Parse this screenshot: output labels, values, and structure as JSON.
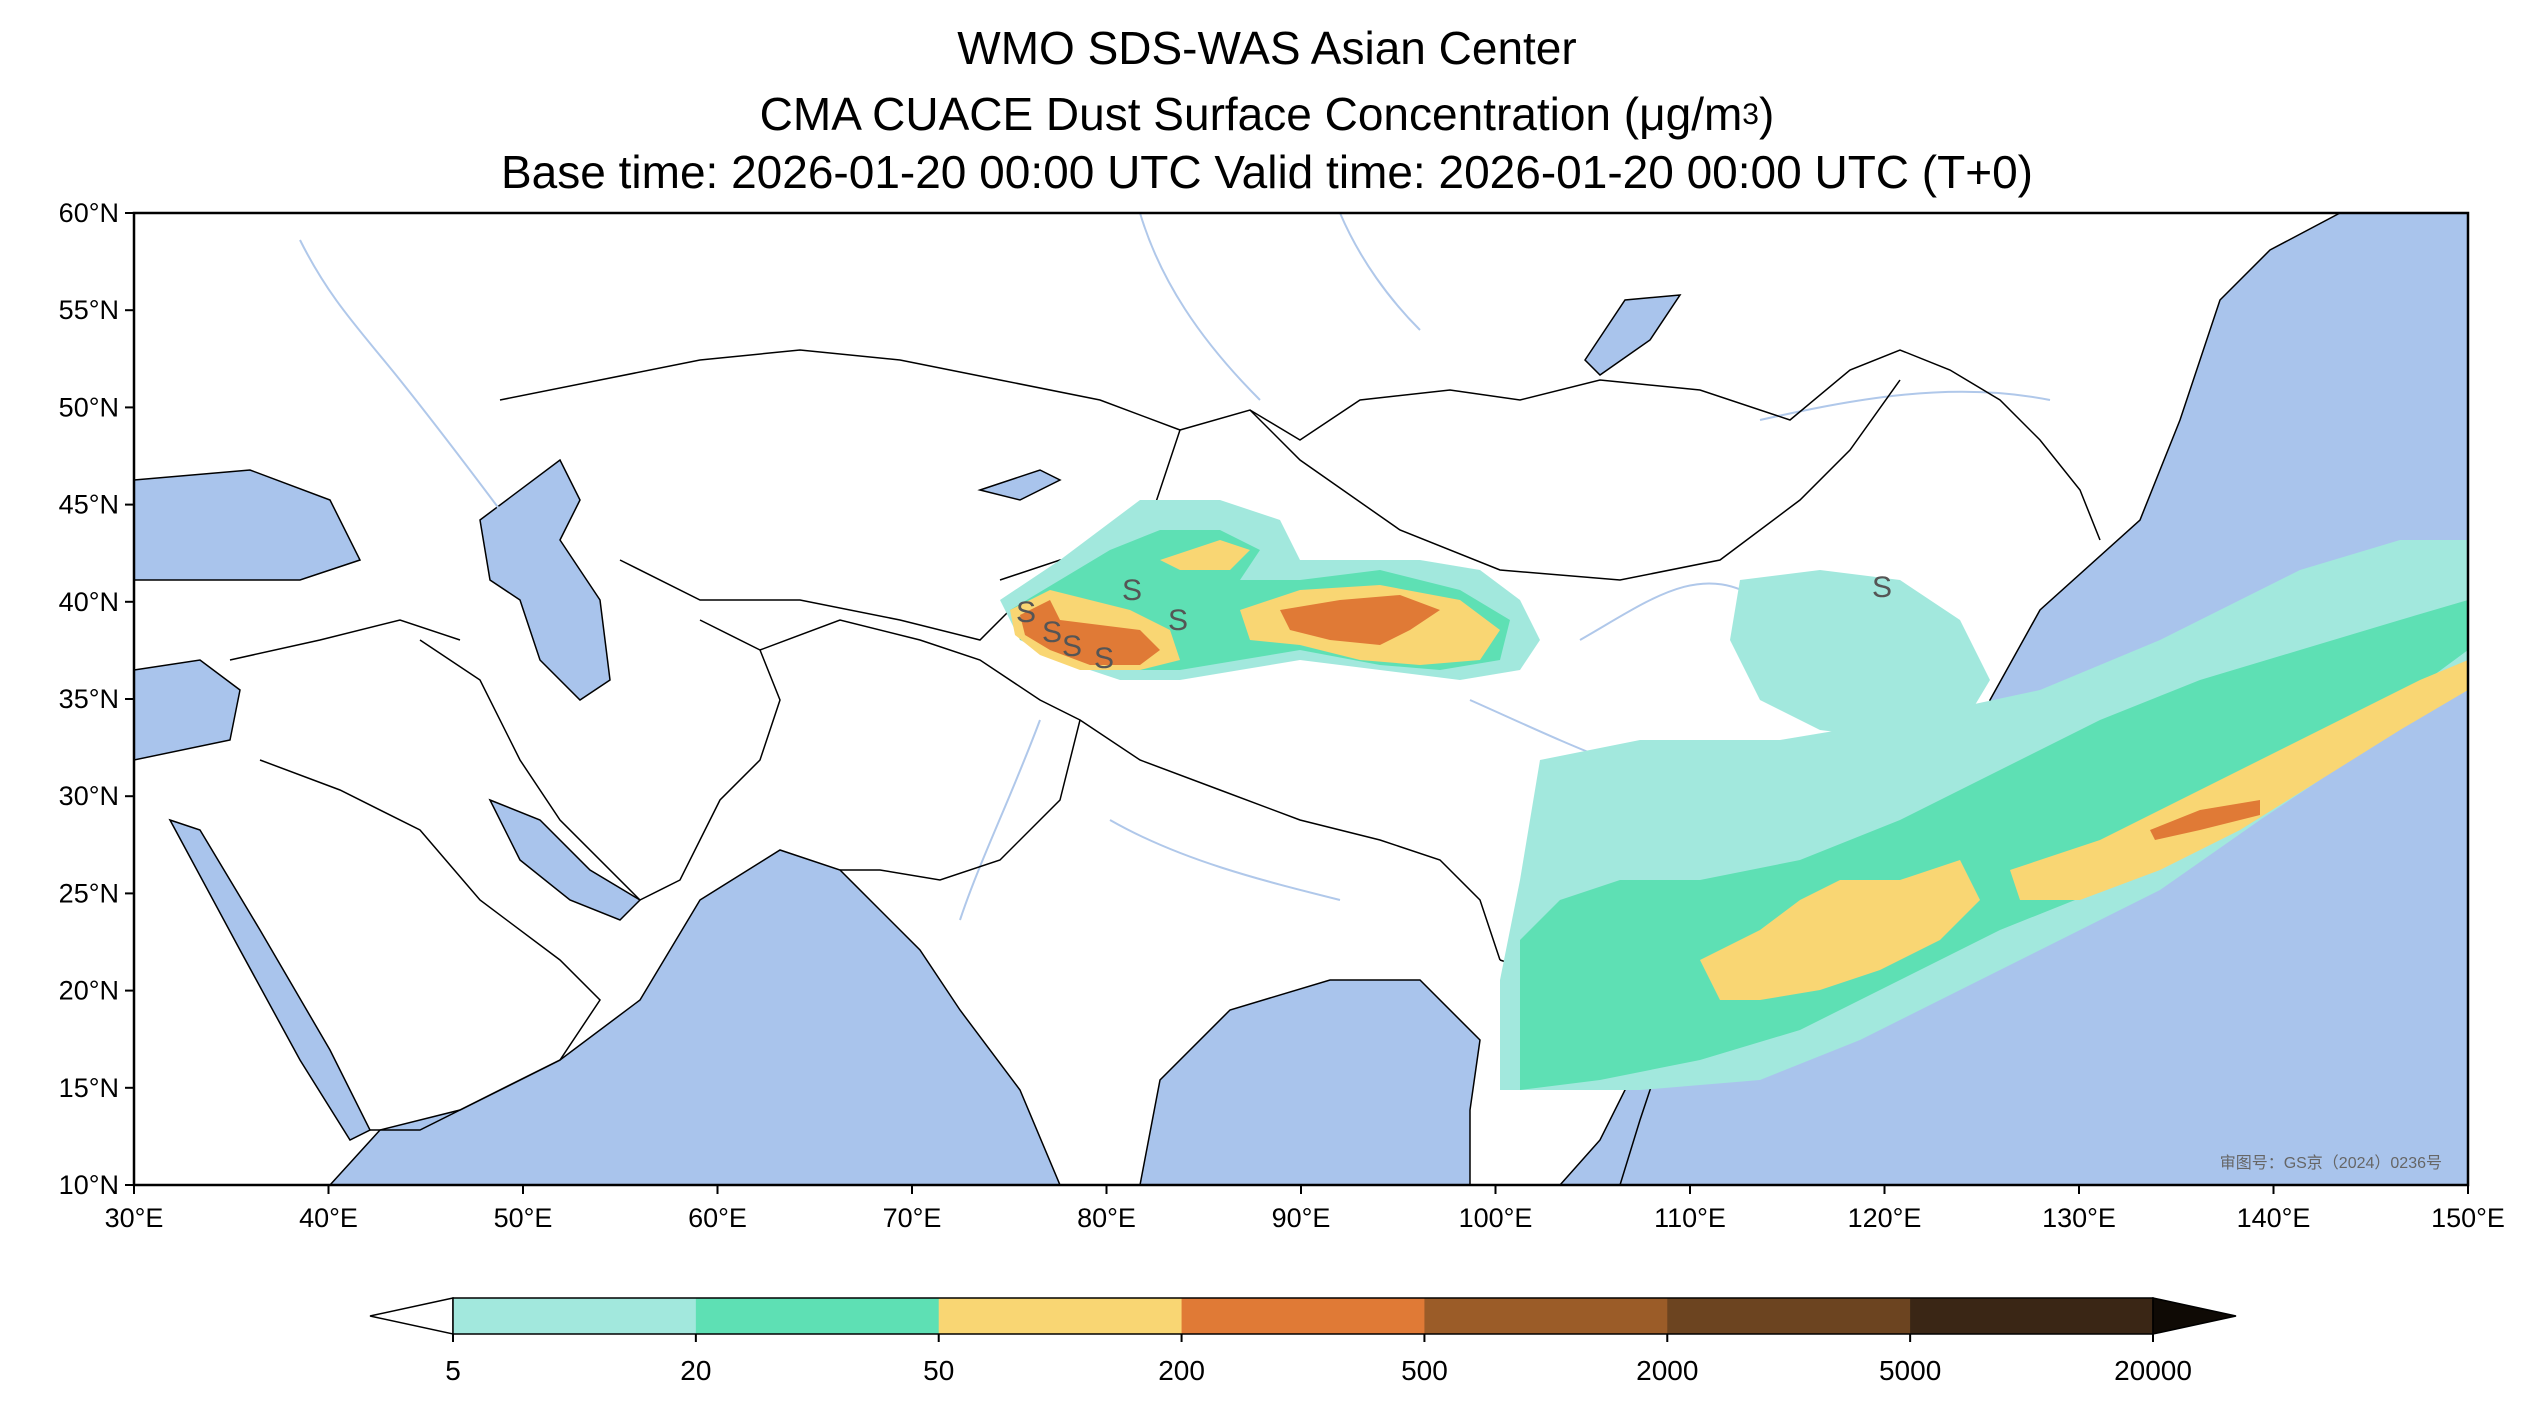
{
  "header": {
    "title": "WMO SDS-WAS Asian Center",
    "subtitle_prefix": "CMA CUACE Dust Surface Concentration (",
    "subtitle_unit": "μg/m",
    "subtitle_exp": "3",
    "subtitle_suffix": ")",
    "time_line": "Base time: 2026-01-20 00:00 UTC Valid time: 2026-01-20 00:00 UTC (T+0)"
  },
  "map": {
    "lon_range": [
      30,
      150
    ],
    "lat_range": [
      10,
      60
    ],
    "lat_labels": [
      "60°N",
      "55°N",
      "50°N",
      "45°N",
      "40°N",
      "35°N",
      "30°N",
      "25°N",
      "20°N",
      "15°N",
      "10°N"
    ],
    "lon_labels": [
      "30°E",
      "40°E",
      "50°E",
      "60°E",
      "70°E",
      "80°E",
      "90°E",
      "100°E",
      "110°E",
      "120°E",
      "130°E",
      "140°E",
      "150°E"
    ],
    "approval_number": "审图号：GS京（2024）0236号",
    "source_marker": "S",
    "colors": {
      "ocean": "#a9c4ec",
      "land": "#ffffff",
      "border": "#000000",
      "river": "#b0c8ea"
    }
  },
  "colorbar": {
    "ticks": [
      "5",
      "20",
      "50",
      "200",
      "500",
      "2000",
      "5000",
      "20000"
    ],
    "colors": [
      "#a2e8dd",
      "#5ee0b4",
      "#f9d673",
      "#e07a36",
      "#9b5c28",
      "#6c4420",
      "#3a2615"
    ],
    "under_color": "#ffffff",
    "over_color": "#0f0a05"
  }
}
